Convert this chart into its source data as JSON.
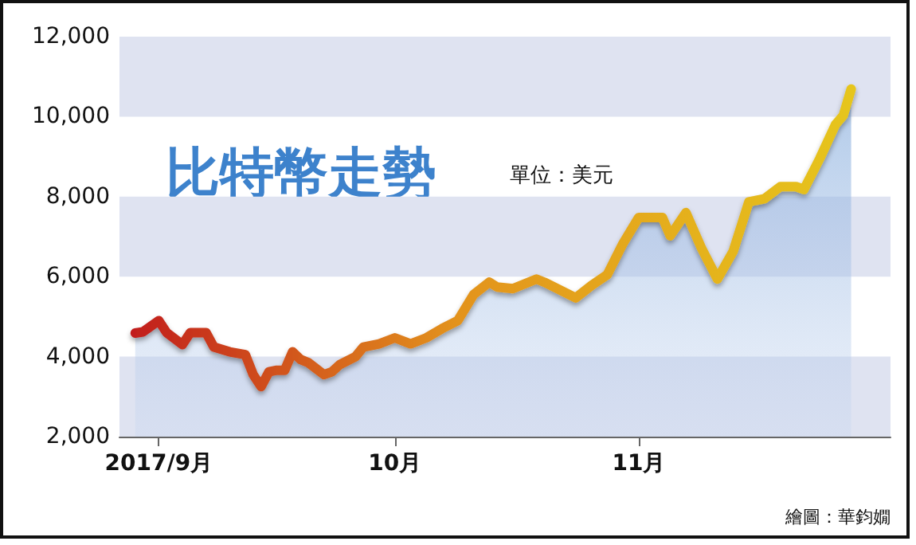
{
  "chart_data": {
    "type": "area",
    "title": "比特幣走勢",
    "subtitle": "單位：美元",
    "annotations": [
      "繪圖：華鈞嫺"
    ],
    "x": [
      "2017-08-29",
      "2017-08-30",
      "2017-09-01",
      "2017-09-02",
      "2017-09-04",
      "2017-09-05",
      "2017-09-07",
      "2017-09-08",
      "2017-09-10",
      "2017-09-12",
      "2017-09-13",
      "2017-09-14",
      "2017-09-15",
      "2017-09-16",
      "2017-09-17",
      "2017-09-18",
      "2017-09-19",
      "2017-09-20",
      "2017-09-22",
      "2017-09-23",
      "2017-09-24",
      "2017-09-26",
      "2017-09-27",
      "2017-09-29",
      "2017-10-01",
      "2017-10-03",
      "2017-10-05",
      "2017-10-07",
      "2017-10-09",
      "2017-10-11",
      "2017-10-13",
      "2017-10-14",
      "2017-10-16",
      "2017-10-19",
      "2017-10-20",
      "2017-10-24",
      "2017-10-26",
      "2017-10-28",
      "2017-10-30",
      "2017-11-01",
      "2017-11-04",
      "2017-11-05",
      "2017-11-07",
      "2017-11-09",
      "2017-11-11",
      "2017-11-13",
      "2017-11-15",
      "2017-11-17",
      "2017-11-19",
      "2017-11-21",
      "2017-11-22",
      "2017-11-24",
      "2017-11-26",
      "2017-11-27",
      "2017-11-28"
    ],
    "series": [
      {
        "color": "#e6c51c",
        "values": [
          4590,
          4620,
          4900,
          4600,
          4300,
          4600,
          4600,
          4240,
          4120,
          4050,
          3550,
          3250,
          3620,
          3660,
          3660,
          4120,
          3930,
          3850,
          3550,
          3620,
          3800,
          4000,
          4240,
          4320,
          4470,
          4320,
          4470,
          4700,
          4900,
          5550,
          5860,
          5740,
          5700,
          5940,
          5860,
          5470,
          5780,
          6050,
          6830,
          7480,
          7480,
          7020,
          7600,
          6700,
          5940,
          6630,
          7870,
          7950,
          8250,
          8250,
          8180,
          8950,
          9800,
          10030,
          10690
        ]
      }
    ],
    "xlim": [
      "2017-08-27",
      "2017-12-03"
    ],
    "xticks": [
      {
        "value": "2017-09-01",
        "label": "2017/9月"
      },
      {
        "value": "2017-10-01",
        "label": "10月"
      },
      {
        "value": "2017-11-01",
        "label": "11月"
      }
    ],
    "ylim": [
      2000,
      12000
    ],
    "yticks": [
      {
        "value": 2000,
        "label": "2,000"
      },
      {
        "value": 4000,
        "label": "4,000"
      },
      {
        "value": 6000,
        "label": "6,000"
      },
      {
        "value": 8000,
        "label": "8,000"
      },
      {
        "value": 10000,
        "label": "10,000"
      },
      {
        "value": 12000,
        "label": "12,000"
      }
    ],
    "bands": [
      {
        "axis": "y",
        "from": 10000,
        "to": 12000,
        "color": "#dfe3f1"
      },
      {
        "axis": "y",
        "from": 6000,
        "to": 8000,
        "color": "#dfe3f1"
      },
      {
        "axis": "y",
        "from": 2000,
        "to": 4000,
        "color": "#dfe3f1"
      }
    ],
    "grid": false,
    "marker": "none",
    "line_style": "solid"
  }
}
